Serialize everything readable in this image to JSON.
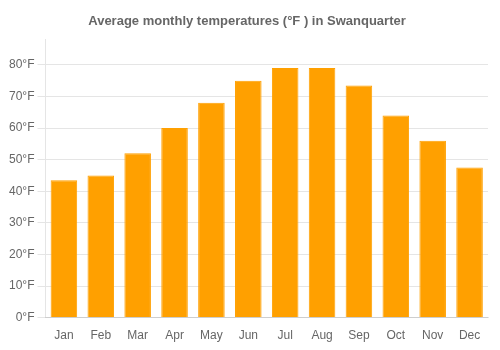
{
  "chart_data": {
    "type": "bar",
    "title": "Average monthly temperatures (°F ) in Swanquarter",
    "categories": [
      "Jan",
      "Feb",
      "Mar",
      "Apr",
      "May",
      "Jun",
      "Jul",
      "Aug",
      "Sep",
      "Oct",
      "Nov",
      "Dec"
    ],
    "values": [
      43.5,
      45.0,
      52.0,
      60.0,
      68.0,
      75.0,
      79.0,
      79.0,
      73.5,
      64.0,
      56.0,
      47.5
    ],
    "color": "#FFA000",
    "ylim": [
      0,
      88
    ],
    "yticks": [
      {
        "value": 0,
        "label": "0°F"
      },
      {
        "value": 10,
        "label": "10°F"
      },
      {
        "value": 20,
        "label": "20°F"
      },
      {
        "value": 30,
        "label": "30°F"
      },
      {
        "value": 40,
        "label": "40°F"
      },
      {
        "value": 50,
        "label": "50°F"
      },
      {
        "value": 60,
        "label": "60°F"
      },
      {
        "value": 70,
        "label": "70°F"
      },
      {
        "value": 80,
        "label": "80°F"
      }
    ],
    "grid": true
  }
}
